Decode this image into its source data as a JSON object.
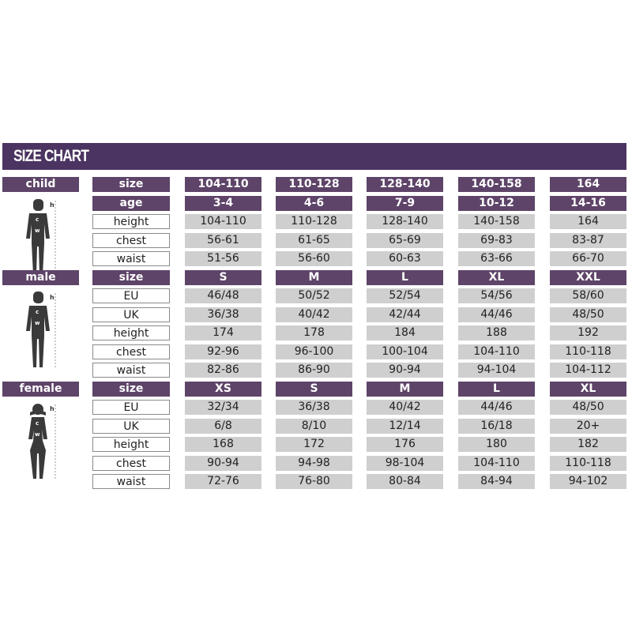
{
  "title": "SIZE CHART",
  "colors": {
    "header_bar": "#4b3461",
    "header_cell": "#5e4468",
    "value_cell": "#cfcfcf"
  },
  "groups": [
    {
      "name": "child",
      "figure": "child-silhouette-icon",
      "rows": [
        {
          "label": "size",
          "header": true,
          "values": [
            "104-110",
            "110-128",
            "128-140",
            "140-158",
            "164"
          ]
        },
        {
          "label": "age",
          "header": true,
          "values": [
            "3-4",
            "4-6",
            "7-9",
            "10-12",
            "14-16"
          ]
        },
        {
          "label": "height",
          "values": [
            "104-110",
            "110-128",
            "128-140",
            "140-158",
            "164"
          ]
        },
        {
          "label": "chest",
          "values": [
            "56-61",
            "61-65",
            "65-69",
            "69-83",
            "83-87"
          ]
        },
        {
          "label": "waist",
          "values": [
            "51-56",
            "56-60",
            "60-63",
            "63-66",
            "66-70"
          ]
        }
      ]
    },
    {
      "name": "male",
      "figure": "male-silhouette-icon",
      "rows": [
        {
          "label": "size",
          "header": true,
          "values": [
            "S",
            "M",
            "L",
            "XL",
            "XXL"
          ]
        },
        {
          "label": "EU",
          "values": [
            "46/48",
            "50/52",
            "52/54",
            "54/56",
            "58/60"
          ]
        },
        {
          "label": "UK",
          "values": [
            "36/38",
            "40/42",
            "42/44",
            "44/46",
            "48/50"
          ]
        },
        {
          "label": "height",
          "values": [
            "174",
            "178",
            "184",
            "188",
            "192"
          ]
        },
        {
          "label": "chest",
          "values": [
            "92-96",
            "96-100",
            "100-104",
            "104-110",
            "110-118"
          ]
        },
        {
          "label": "waist",
          "values": [
            "82-86",
            "86-90",
            "90-94",
            "94-104",
            "104-112"
          ]
        }
      ]
    },
    {
      "name": "female",
      "figure": "female-silhouette-icon",
      "rows": [
        {
          "label": "size",
          "header": true,
          "values": [
            "XS",
            "S",
            "M",
            "L",
            "XL"
          ]
        },
        {
          "label": "EU",
          "values": [
            "32/34",
            "36/38",
            "40/42",
            "44/46",
            "48/50"
          ]
        },
        {
          "label": "UK",
          "values": [
            "6/8",
            "8/10",
            "12/14",
            "16/18",
            "20+"
          ]
        },
        {
          "label": "height",
          "values": [
            "168",
            "172",
            "176",
            "180",
            "182"
          ]
        },
        {
          "label": "chest",
          "values": [
            "90-94",
            "94-98",
            "98-104",
            "104-110",
            "110-118"
          ]
        },
        {
          "label": "waist",
          "values": [
            "72-76",
            "76-80",
            "80-84",
            "84-94",
            "94-102"
          ]
        }
      ]
    }
  ],
  "figure_marks": {
    "h": "h",
    "c": "c",
    "w": "w"
  }
}
